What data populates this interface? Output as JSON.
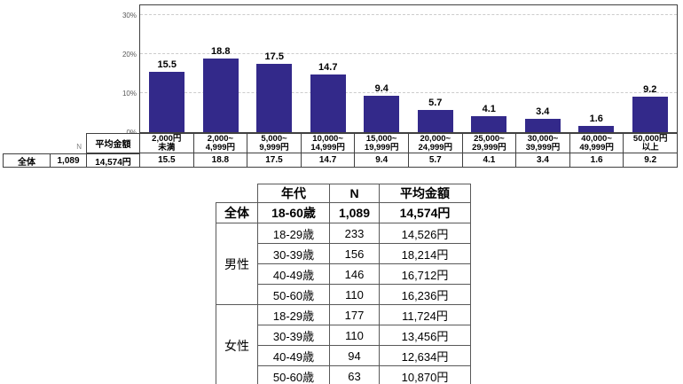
{
  "colors": {
    "bar_fill": "#33298a",
    "plot_border": "#404040",
    "gridline": "#cccccc",
    "summary_table_border": "#595959",
    "tick_text": "#595959",
    "n_label_text": "#808080"
  },
  "chart_data": {
    "type": "bar",
    "title": "",
    "xlabel": "",
    "ylabel": "",
    "ylim": [
      0,
      30
    ],
    "yticks": [
      {
        "label": "0%",
        "value": 0
      },
      {
        "label": "10%",
        "value": 10
      },
      {
        "label": "20%",
        "value": 20
      },
      {
        "label": "30%",
        "value": 30
      }
    ],
    "grid": "horizontal-dashed",
    "legend": "none",
    "categories": [
      [
        "2,000円",
        "未満"
      ],
      [
        "2,000~",
        "4,999円"
      ],
      [
        "5,000~",
        "9,999円"
      ],
      [
        "10,000~",
        "14,999円"
      ],
      [
        "15,000~",
        "19,999円"
      ],
      [
        "20,000~",
        "24,999円"
      ],
      [
        "25,000~",
        "29,999円"
      ],
      [
        "30,000~",
        "39,999円"
      ],
      [
        "40,000~",
        "49,999円"
      ],
      [
        "50,000円",
        "以上"
      ]
    ],
    "values": [
      15.5,
      18.8,
      17.5,
      14.7,
      9.4,
      5.7,
      4.1,
      3.4,
      1.6,
      9.2
    ],
    "value_labels": [
      "15.5",
      "18.8",
      "17.5",
      "14.7",
      "9.4",
      "5.7",
      "4.1",
      "3.4",
      "1.6",
      "9.2"
    ],
    "summary_row": {
      "row_label": "全体",
      "n_label": "N",
      "n_value": "1,089",
      "avg_label": "平均金額",
      "avg_value": "14,574円"
    }
  },
  "summary_table": {
    "col_headers": [
      "年代",
      "N",
      "平均金額"
    ],
    "total_row": {
      "group": "全体",
      "age": "18-60歳",
      "n": "1,089",
      "avg": "14,574円"
    },
    "groups": [
      {
        "label": "男性",
        "rows": [
          {
            "age": "18-29歳",
            "n": "233",
            "avg": "14,526円"
          },
          {
            "age": "30-39歳",
            "n": "156",
            "avg": "18,214円"
          },
          {
            "age": "40-49歳",
            "n": "146",
            "avg": "16,712円"
          },
          {
            "age": "50-60歳",
            "n": "110",
            "avg": "16,236円"
          }
        ]
      },
      {
        "label": "女性",
        "rows": [
          {
            "age": "18-29歳",
            "n": "177",
            "avg": "11,724円"
          },
          {
            "age": "30-39歳",
            "n": "110",
            "avg": "13,456円"
          },
          {
            "age": "40-49歳",
            "n": "94",
            "avg": "12,634円"
          },
          {
            "age": "50-60歳",
            "n": "63",
            "avg": "10,870円"
          }
        ]
      }
    ]
  }
}
